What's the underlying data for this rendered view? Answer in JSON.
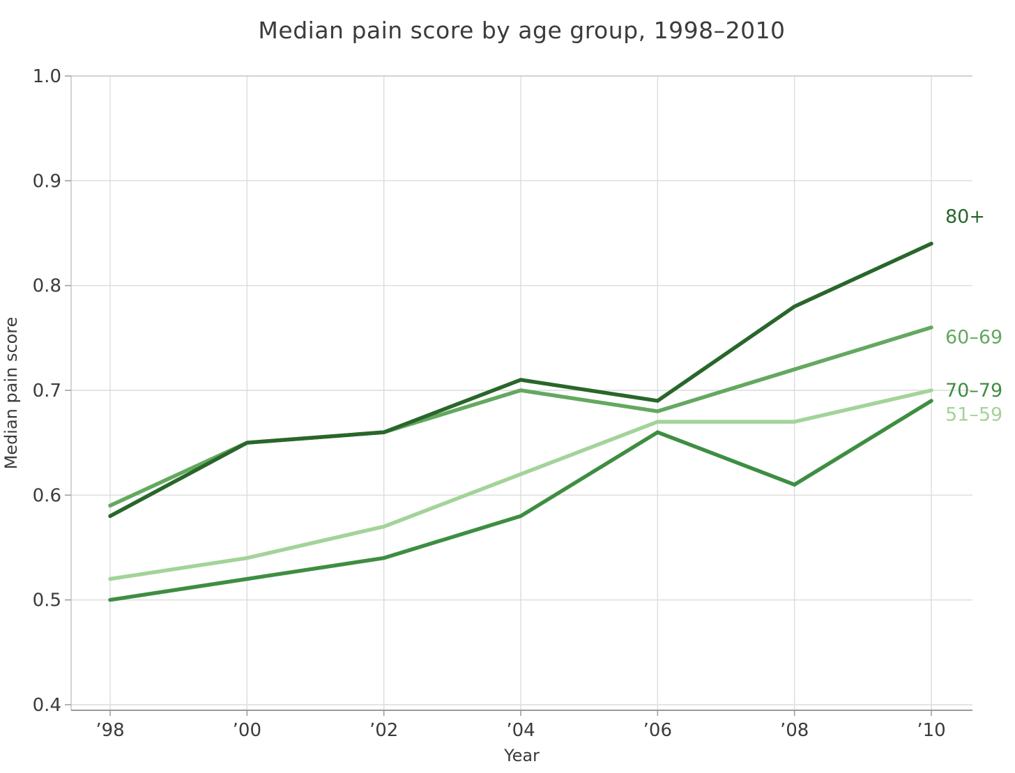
{
  "chart_data": {
    "type": "line",
    "title": "Median pain score by age group, 1998–2010",
    "xlabel": "Year",
    "ylabel": "Median pain score",
    "x": [
      1998,
      2000,
      2002,
      2004,
      2006,
      2008,
      2010
    ],
    "xtick_labels": [
      "’98",
      "’00",
      "’02",
      "’04",
      "’06",
      "’08",
      "’10"
    ],
    "yticks": [
      0.4,
      0.5,
      0.6,
      0.7,
      0.8,
      0.9,
      1.0
    ],
    "ytick_labels": [
      "0.4",
      "0.5",
      "0.6",
      "0.7",
      "0.8",
      "0.9",
      "1.0"
    ],
    "ylim": [
      0.4,
      1.0
    ],
    "grid": true,
    "legend_position": "right-edge-annotations",
    "series": [
      {
        "name": "51–59",
        "color": "#a3d399",
        "values": [
          0.52,
          0.54,
          0.57,
          0.62,
          0.67,
          0.67,
          0.7
        ],
        "label_value": 0.677
      },
      {
        "name": "60–69",
        "color": "#64a860",
        "values": [
          0.59,
          0.65,
          0.66,
          0.7,
          0.68,
          0.72,
          0.76
        ],
        "label_value": 0.751
      },
      {
        "name": "70–79",
        "color": "#3e8e41",
        "values": [
          0.5,
          0.52,
          0.54,
          0.58,
          0.66,
          0.61,
          0.69
        ],
        "label_value": 0.7
      },
      {
        "name": "80+",
        "color": "#29662b",
        "values": [
          0.58,
          0.65,
          0.66,
          0.71,
          0.69,
          0.78,
          0.84
        ],
        "label_value": 0.866
      }
    ]
  },
  "style_colors": {
    "grid": "#dcdcdc",
    "spine": "#c9c9c9",
    "bottom_spine": "#8c8c8c",
    "tick": "#9e9e9e",
    "text": "#3b3b3b"
  }
}
